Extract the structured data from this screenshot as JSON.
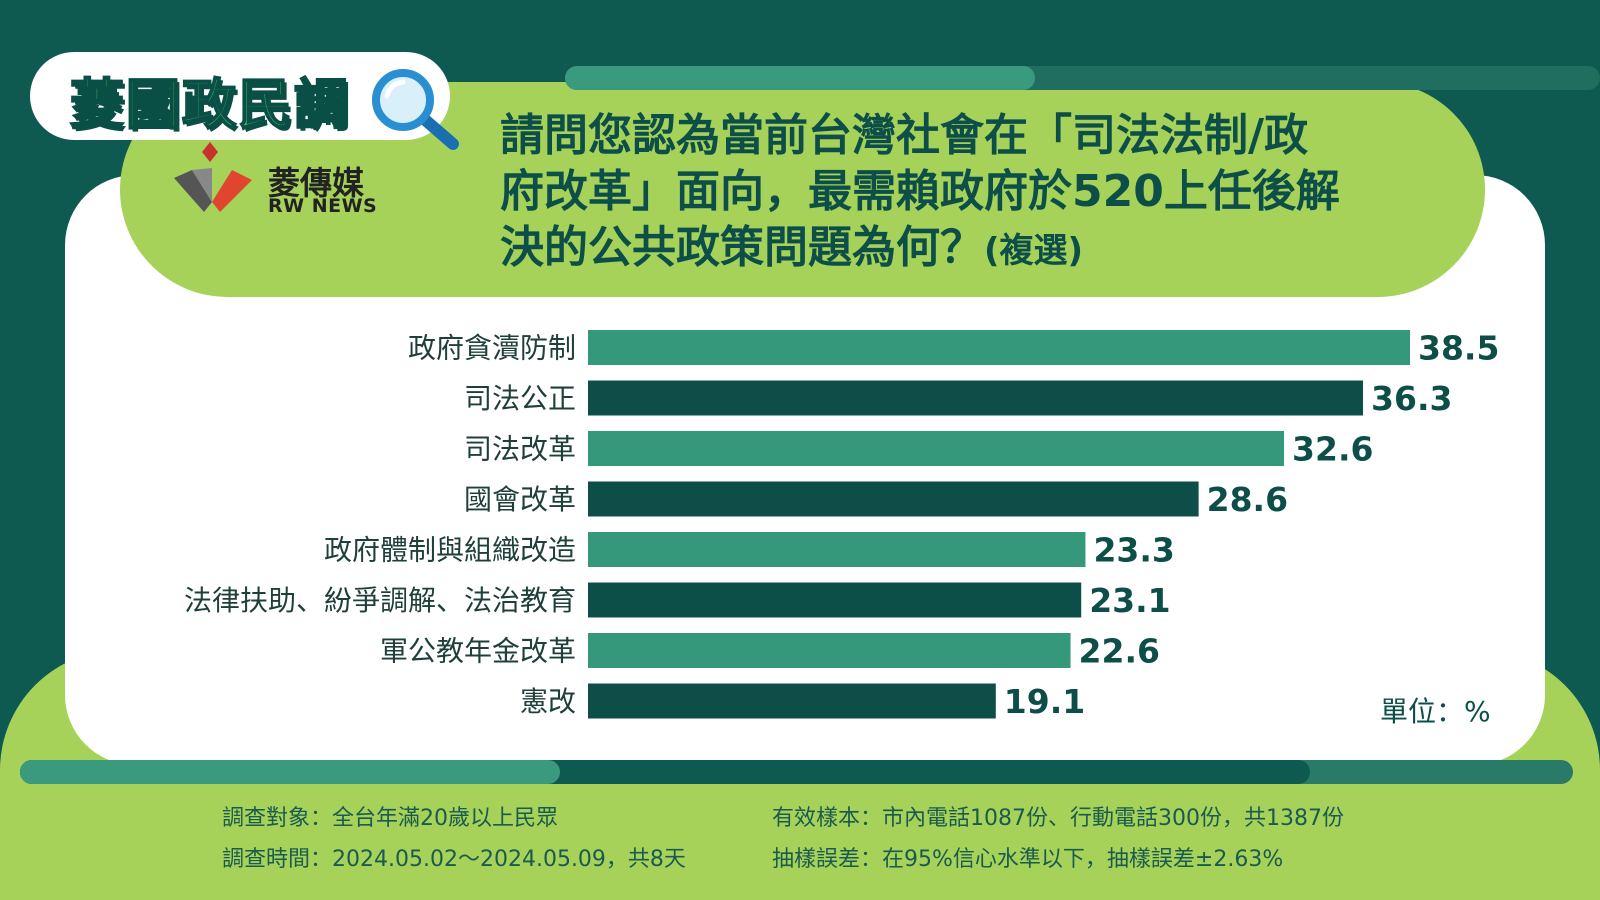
{
  "brand": {
    "title": "菱國政民調",
    "logo_cn": "菱傳媒",
    "logo_en": "RW NEWS"
  },
  "question": {
    "line1": "請問您認為當前台灣社會在「司法法制/政",
    "line2": "府改革」面向，最需賴政府於520上任後解",
    "line3": "決的公共政策問題為何？",
    "note": "(複選)"
  },
  "unit_label": "單位：%",
  "colors": {
    "bar_light": "#35987a",
    "bar_dark": "#0d4f48",
    "label_text": "#1e3f3a",
    "value_text": "#0d4f48"
  },
  "chart_data": {
    "type": "bar",
    "orientation": "horizontal",
    "categories": [
      "政府貪瀆防制",
      "司法公正",
      "司法改革",
      "國會改革",
      "政府體制與組織改造",
      "法律扶助、紛爭調解、法治教育",
      "軍公教年金改革",
      "憲改"
    ],
    "values": [
      38.5,
      36.3,
      32.6,
      28.6,
      23.3,
      23.1,
      22.6,
      19.1
    ],
    "value_labels": [
      "38.5",
      "36.3",
      "32.6",
      "28.6",
      "23.3",
      "23.1",
      "22.6",
      "19.1"
    ],
    "xlim": [
      0,
      38.5
    ],
    "grid": false,
    "legend": "none"
  },
  "footer": {
    "target": "調查對象：全台年滿20歲以上民眾",
    "period": "調查時間：2024.05.02～2024.05.09，共8天",
    "sample": "有效樣本：市內電話1087份、行動電話300份，共1387份",
    "error": "抽樣誤差：在95%信心水準以下，抽樣誤差±2.63%"
  }
}
